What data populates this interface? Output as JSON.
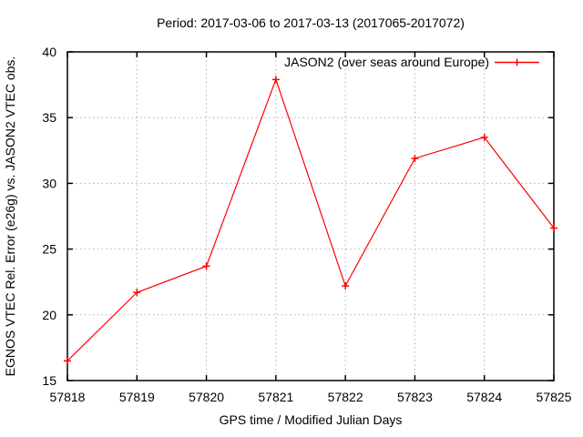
{
  "chart_data": {
    "type": "line",
    "title": "Period: 2017-03-06 to 2017-03-13 (2017065-2017072)",
    "xlabel": "GPS time / Modified Julian Days",
    "ylabel": "EGNOS VTEC Rel. Error (e26g) vs. JASON2 VTEC obs.",
    "x": [
      57818,
      57819,
      57820,
      57821,
      57822,
      57823,
      57824,
      57825
    ],
    "series": [
      {
        "name": "JASON2 (over seas around Europe)",
        "values": [
          16.5,
          21.7,
          23.7,
          37.9,
          22.2,
          31.9,
          33.5,
          26.6
        ],
        "color": "#ff0000",
        "marker": "plus"
      }
    ],
    "xlim": [
      57818,
      57825
    ],
    "ylim": [
      15,
      40
    ],
    "x_ticks": [
      57818,
      57819,
      57820,
      57821,
      57822,
      57823,
      57824,
      57825
    ],
    "y_ticks": [
      15,
      20,
      25,
      30,
      35,
      40
    ],
    "grid": true,
    "legend_position": "top-right-inside"
  },
  "colors": {
    "background": "#ffffff",
    "frame": "#000000",
    "grid": "#b0b0b0",
    "series_red": "#ff0000",
    "text": "#000000"
  }
}
